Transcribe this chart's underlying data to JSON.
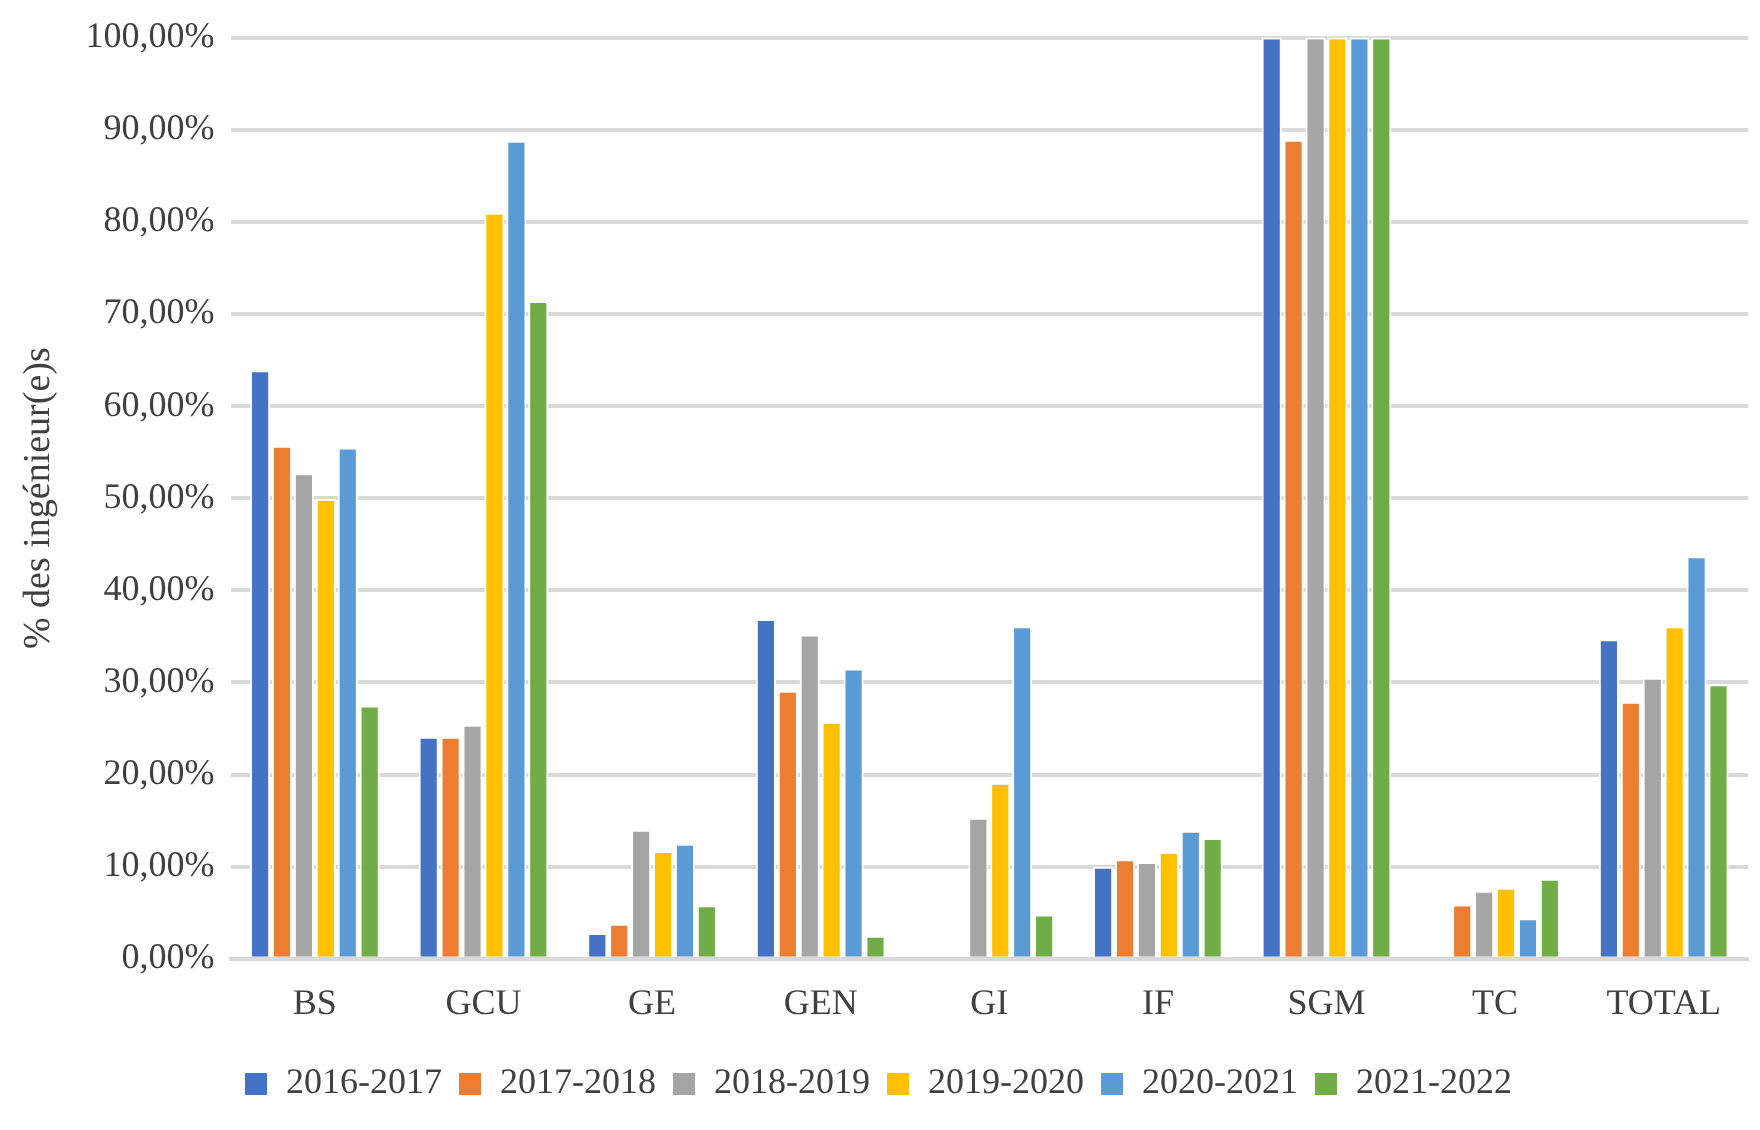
{
  "chart_data": {
    "type": "bar",
    "ylabel": "% des ingénieur(e)s",
    "categories": [
      "BS",
      "GCU",
      "GE",
      "GEN",
      "GI",
      "IF",
      "SGM",
      "TC",
      "TOTAL"
    ],
    "series": [
      {
        "name": "2016-2017",
        "color": "#4472c4",
        "values": [
          63.9,
          24.1,
          2.8,
          36.9,
          null,
          10.0,
          100,
          null,
          34.7
        ]
      },
      {
        "name": "2017-2018",
        "color": "#ed7d31",
        "values": [
          55.7,
          24.1,
          3.8,
          29.1,
          null,
          10.8,
          88.9,
          5.9,
          27.9
        ]
      },
      {
        "name": "2018-2019",
        "color": "#a5a5a5",
        "values": [
          52.7,
          25.4,
          14.0,
          35.2,
          15.3,
          10.5,
          100,
          7.4,
          30.5
        ]
      },
      {
        "name": "2019-2020",
        "color": "#ffc000",
        "values": [
          49.9,
          81.0,
          11.7,
          25.7,
          19.1,
          11.6,
          100,
          7.7,
          36.1
        ]
      },
      {
        "name": "2020-2021",
        "color": "#5b9bd5",
        "values": [
          55.5,
          88.8,
          12.5,
          31.5,
          36.1,
          13.9,
          100,
          4.4,
          43.7
        ]
      },
      {
        "name": "2021-2022",
        "color": "#70ad47",
        "values": [
          27.5,
          71.4,
          5.8,
          2.5,
          4.8,
          13.1,
          100,
          8.7,
          29.8
        ]
      }
    ],
    "ylim": [
      0,
      100
    ],
    "yticks": [
      {
        "value": 0,
        "label": "0,00%"
      },
      {
        "value": 10,
        "label": "10,00%"
      },
      {
        "value": 20,
        "label": "20,00%"
      },
      {
        "value": 30,
        "label": "30,00%"
      },
      {
        "value": 40,
        "label": "40,00%"
      },
      {
        "value": 50,
        "label": "50,00%"
      },
      {
        "value": 60,
        "label": "60,00%"
      },
      {
        "value": 70,
        "label": "70,00%"
      },
      {
        "value": 80,
        "label": "80,00%"
      },
      {
        "value": 90,
        "label": "90,00%"
      },
      {
        "value": 100,
        "label": "100,00%"
      }
    ],
    "grid": "y",
    "legend": "bottom"
  }
}
